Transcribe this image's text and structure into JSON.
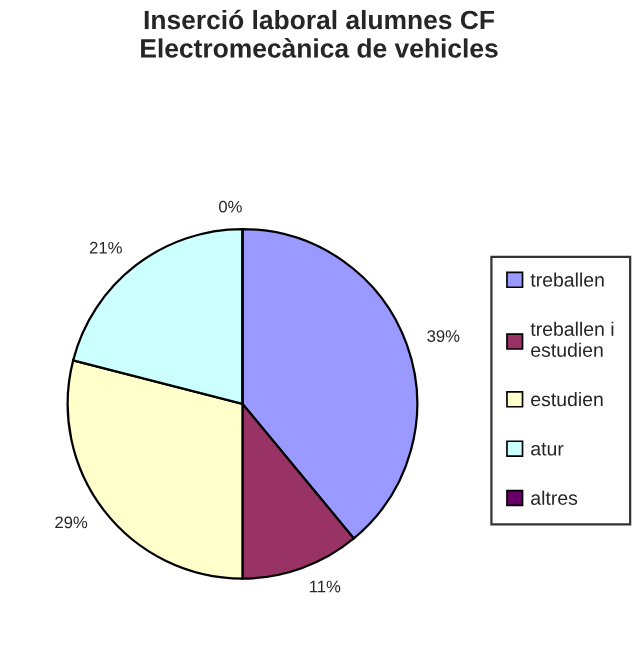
{
  "chart_data": {
    "type": "pie",
    "title": "Inserció laboral alumnes CF\nElectromecànica de vehicles",
    "categories": [
      "treballen",
      "treballen i estudien",
      "estudien",
      "atur",
      "altres"
    ],
    "values": [
      39,
      11,
      29,
      21,
      0
    ],
    "colors": [
      "#9999ff",
      "#993366",
      "#ffffcc",
      "#ccffff",
      "#660066"
    ],
    "value_labels": [
      "39%",
      "11%",
      "29%",
      "21%",
      "0%"
    ],
    "legend": "right"
  }
}
